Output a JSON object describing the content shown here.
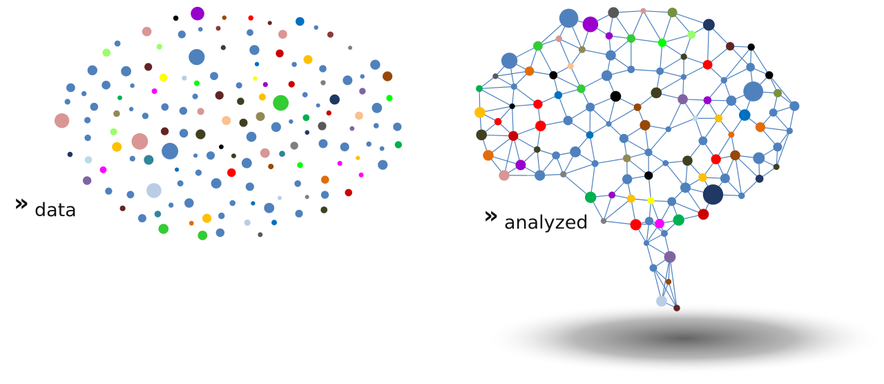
{
  "captions": {
    "left_marker": "»",
    "left_word": "data",
    "right_marker": "»",
    "right_word": "analyzed"
  },
  "colors": {
    "network_line": "#4a7fbf",
    "shadow": "#6e6e6e",
    "palette": [
      "#4f81bd",
      "#e8e8e8",
      "#ff0000",
      "#9900cc",
      "#00b050",
      "#8b3a3a",
      "#76923c",
      "#000000",
      "#e36c09",
      "#ffc000",
      "#99ff66",
      "#984806",
      "#632523",
      "#d99694",
      "#ff00ff",
      "#cc0000",
      "#ffff00",
      "#404021",
      "#8064a2",
      "#1f3864",
      "#0070c0",
      "#33cc33",
      "#b9cde5",
      "#fac090",
      "#938953",
      "#595959",
      "#31859c",
      "#7f7f7f",
      "#b7dde8",
      "#00ff00"
    ]
  }
}
